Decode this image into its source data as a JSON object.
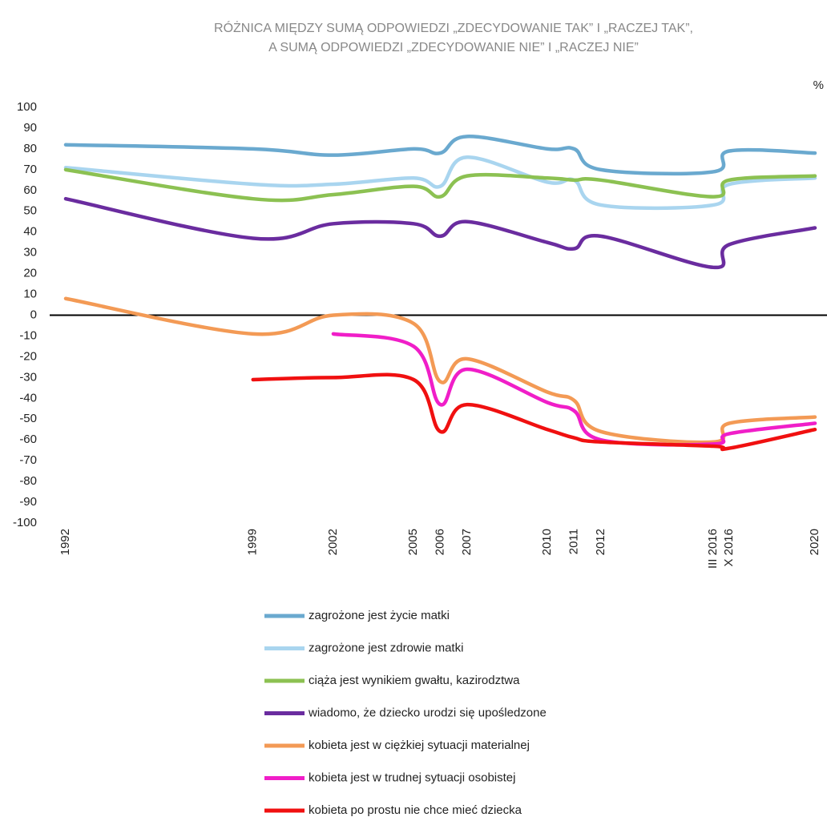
{
  "chart_data": {
    "type": "line",
    "title": [
      "RÓŻNICA MIĘDZY SUMĄ ODPOWIEDZI „ZDECYDOWANIE TAK” I „RACZEJ TAK”,",
      "A SUMĄ ODPOWIEDZI „ZDECYDOWANIE NIE” I „RACZEJ NIE”"
    ],
    "y_label": "%",
    "x": [
      1992,
      1999,
      2002,
      2005,
      2006,
      2007,
      2010,
      2011,
      2012,
      2016.2,
      2016.8,
      2020
    ],
    "xlim": [
      1992,
      2020
    ],
    "xticks": [
      1992,
      1999,
      2002,
      2005,
      2006,
      2007,
      2010,
      2011,
      2012,
      {
        "value": 2016.2,
        "label": "III 2016"
      },
      {
        "value": 2016.8,
        "label": "X 2016"
      },
      2020
    ],
    "ylim": [
      -100,
      100
    ],
    "yticks": [
      -100,
      -90,
      -80,
      -70,
      -60,
      -50,
      -40,
      -30,
      -20,
      -10,
      0,
      10,
      20,
      30,
      40,
      50,
      60,
      70,
      80,
      90,
      100
    ],
    "grid": false,
    "legend": "bottom",
    "series": [
      {
        "name": "zagrożone jest życie matki",
        "color": "#6aa9cf",
        "values": [
          82,
          80,
          77,
          80,
          78,
          86,
          80,
          80,
          70,
          69,
          79,
          78
        ]
      },
      {
        "name": "zagrożone jest zdrowie matki",
        "color": "#a9d5ef",
        "values": [
          71,
          63,
          63,
          66,
          62,
          76,
          64,
          65,
          53,
          53,
          63,
          66
        ]
      },
      {
        "name": "ciąża jest wynikiem gwałtu, kazirodztwa",
        "color": "#8cc152",
        "values": [
          70,
          56,
          58,
          62,
          57,
          67,
          66,
          65,
          65,
          57,
          65,
          67
        ]
      },
      {
        "name": "wiadomo, że dziecko urodzi się upośledzone",
        "color": "#6a2c9f",
        "values": [
          56,
          37,
          44,
          44,
          38,
          45,
          35,
          32,
          38,
          23,
          34,
          42
        ]
      },
      {
        "name": "kobieta jest w ciężkiej sytuacji materialnej",
        "color": "#f39a55",
        "values": [
          8,
          -9,
          0,
          -4,
          -32,
          -21,
          -37,
          -41,
          -56,
          -61,
          -52,
          -49
        ]
      },
      {
        "name": "kobieta jest w trudnej sytuacji osobistej",
        "color": "#f01ec8",
        "values": [
          null,
          null,
          -9,
          -15,
          -43,
          -26,
          -42,
          -46,
          -60,
          -62,
          -57,
          -52
        ]
      },
      {
        "name": "kobieta po prostu nie chce mieć dziecka",
        "color": "#f01010",
        "values": [
          null,
          -31,
          -30,
          -31,
          -56,
          -43,
          -55,
          -59,
          -61,
          -63,
          -64,
          -55
        ]
      }
    ]
  }
}
